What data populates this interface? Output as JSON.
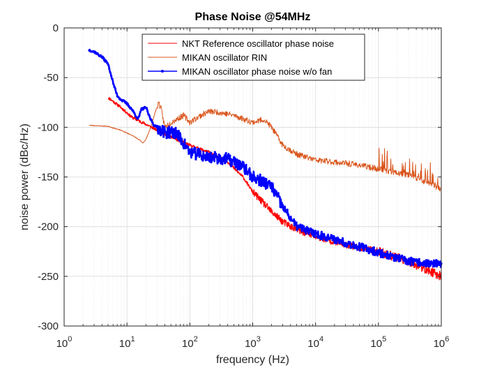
{
  "chart_data": {
    "type": "line",
    "title": "Phase Noise @54MHz",
    "xlabel": "frequency (Hz)",
    "ylabel": "noise power (dBc/Hz)",
    "xscale": "log",
    "xlim": [
      1,
      1000000
    ],
    "ylim": [
      -300,
      0
    ],
    "x_ticks": [
      1,
      10,
      100,
      1000,
      10000,
      100000,
      1000000
    ],
    "x_tick_labels": [
      {
        "base": "10",
        "exp": "0"
      },
      {
        "base": "10",
        "exp": "1"
      },
      {
        "base": "10",
        "exp": "2"
      },
      {
        "base": "10",
        "exp": "3"
      },
      {
        "base": "10",
        "exp": "4"
      },
      {
        "base": "10",
        "exp": "5"
      },
      {
        "base": "10",
        "exp": "6"
      }
    ],
    "y_ticks": [
      0,
      -50,
      -100,
      -150,
      -200,
      -250,
      -300
    ],
    "y_tick_labels": [
      "0",
      "-50",
      "-100",
      "-150",
      "-200",
      "-250",
      "-300"
    ],
    "grid": true,
    "minor_grid_x": true,
    "legend_position": "top-center",
    "series": [
      {
        "name": "NKT Reference oscillator phase noise",
        "color": "#ff0000",
        "marker": "none",
        "style": "noisy-red",
        "points": [
          [
            5,
            -70
          ],
          [
            8,
            -80
          ],
          [
            12,
            -90
          ],
          [
            20,
            -97
          ],
          [
            35,
            -105
          ],
          [
            60,
            -112
          ],
          [
            100,
            -118
          ],
          [
            200,
            -125
          ],
          [
            400,
            -135
          ],
          [
            700,
            -150
          ],
          [
            1000,
            -165
          ],
          [
            2000,
            -185
          ],
          [
            3000,
            -195
          ],
          [
            5000,
            -203
          ],
          [
            10000,
            -210
          ],
          [
            30000,
            -218
          ],
          [
            100000,
            -225
          ],
          [
            300000,
            -235
          ],
          [
            1000000,
            -250
          ]
        ]
      },
      {
        "name": "MIKAN oscillator RIN",
        "color": "#d95319",
        "marker": "none",
        "style": "spiky-orange",
        "points": [
          [
            2.5,
            -98
          ],
          [
            5,
            -99
          ],
          [
            8,
            -103
          ],
          [
            12,
            -108
          ],
          [
            16,
            -113
          ],
          [
            18,
            -116
          ],
          [
            20,
            -112
          ],
          [
            24,
            -100
          ],
          [
            28,
            -85
          ],
          [
            32,
            -75
          ],
          [
            35,
            -82
          ],
          [
            40,
            -100
          ],
          [
            50,
            -95
          ],
          [
            80,
            -88
          ],
          [
            100,
            -95
          ],
          [
            150,
            -88
          ],
          [
            200,
            -84
          ],
          [
            300,
            -85
          ],
          [
            500,
            -88
          ],
          [
            1000,
            -95
          ],
          [
            1500,
            -92
          ],
          [
            2000,
            -100
          ],
          [
            3000,
            -118
          ],
          [
            5000,
            -127
          ],
          [
            10000,
            -133
          ],
          [
            20000,
            -135
          ],
          [
            50000,
            -138
          ],
          [
            100000,
            -142
          ],
          [
            300000,
            -148
          ],
          [
            1000000,
            -162
          ]
        ]
      },
      {
        "name": "MIKAN oscillator phase noise w/o fan",
        "color": "#0000ff",
        "marker": "dot",
        "style": "noisy-blue",
        "points": [
          [
            2.5,
            -22
          ],
          [
            3,
            -24
          ],
          [
            4,
            -29
          ],
          [
            5,
            -36
          ],
          [
            6,
            -55
          ],
          [
            7,
            -68
          ],
          [
            8,
            -72
          ],
          [
            10,
            -76
          ],
          [
            12,
            -82
          ],
          [
            15,
            -92
          ],
          [
            17,
            -82
          ],
          [
            20,
            -80
          ],
          [
            23,
            -90
          ],
          [
            27,
            -98
          ],
          [
            30,
            -100
          ],
          [
            40,
            -105
          ],
          [
            60,
            -105
          ],
          [
            100,
            -125
          ],
          [
            200,
            -130
          ],
          [
            400,
            -132
          ],
          [
            700,
            -140
          ],
          [
            1000,
            -150
          ],
          [
            1500,
            -155
          ],
          [
            2000,
            -160
          ],
          [
            3000,
            -180
          ],
          [
            5000,
            -200
          ],
          [
            10000,
            -207
          ],
          [
            30000,
            -216
          ],
          [
            100000,
            -226
          ],
          [
            300000,
            -235
          ],
          [
            1000000,
            -238
          ]
        ]
      }
    ]
  }
}
